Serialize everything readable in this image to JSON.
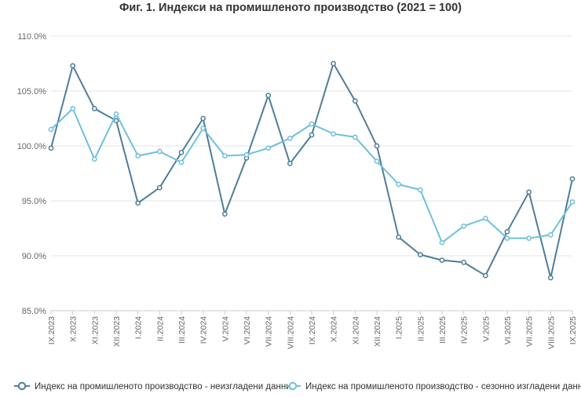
{
  "chart_data": {
    "type": "line",
    "title": "Фиг. 1. Индекси на промишленото производство (2021 = 100)",
    "xlabel": "",
    "ylabel": "",
    "ylim": [
      85,
      110
    ],
    "ytick_step": 5,
    "ytick_suffix": "%",
    "grid": "horizontal",
    "legend_position": "bottom",
    "categories": [
      "IX.2023",
      "X.2023",
      "XI.2023",
      "XII.2023",
      "I.2024",
      "II.2024",
      "III.2024",
      "IV.2024",
      "V.2024",
      "VI.2024",
      "VII.2024",
      "VIII.2024",
      "IX.2024",
      "X.2024",
      "XI.2024",
      "XII.2024",
      "I.2025",
      "II.2025",
      "III.2025",
      "IV.2025",
      "V.2025",
      "VI.2025",
      "VII.2025",
      "VIII.2025",
      "IX.2025"
    ],
    "series": [
      {
        "name": "Индекс на промишленото производство - неизгладени данни",
        "color": "#4f7d99",
        "values": [
          99.8,
          107.3,
          103.4,
          102.3,
          94.8,
          96.2,
          99.4,
          102.5,
          93.8,
          98.9,
          104.6,
          98.4,
          101.0,
          107.5,
          104.1,
          100.0,
          91.7,
          90.1,
          89.6,
          89.4,
          88.2,
          92.2,
          95.8,
          88.0,
          97.0
        ]
      },
      {
        "name": "Индекс на промишленото производство - сезонно изгладени данни",
        "color": "#6fc0db",
        "values": [
          101.5,
          103.4,
          98.8,
          102.9,
          99.1,
          99.5,
          98.5,
          101.6,
          99.1,
          99.2,
          99.8,
          100.7,
          102.0,
          101.1,
          100.8,
          98.6,
          96.5,
          96.0,
          91.2,
          92.7,
          93.4,
          91.6,
          91.6,
          91.9,
          94.9
        ]
      }
    ]
  }
}
